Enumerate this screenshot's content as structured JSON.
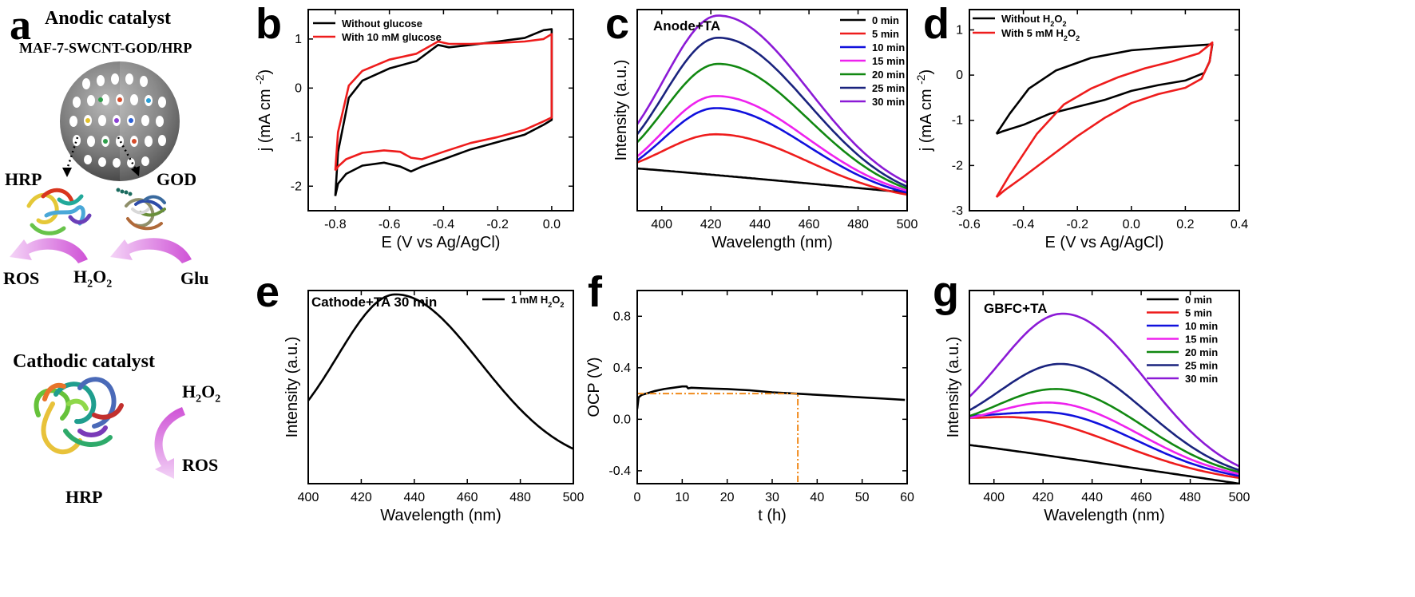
{
  "panel_a": {
    "letter": "a",
    "anodic_title": "Anodic catalyst",
    "subtitle": "MAF-7-SWCNT-GOD/HRP",
    "hrp_label": "HRP",
    "god_label": "GOD",
    "ros_label": "ROS",
    "h2o2_label": "H",
    "h2o2_sub": "2",
    "h2o2_o": "O",
    "glu_label": "Glu",
    "cathodic_title": "Cathodic catalyst",
    "cathode_h2o2": "H",
    "cathode_ros": "ROS",
    "cathode_hrp": "HRP"
  },
  "chart_data": [
    {
      "id": "b",
      "letter": "b",
      "type": "line",
      "xlabel": "E (V vs Ag/AgCl)",
      "ylabel": "j (mA cm-2)",
      "xlim": [
        -0.9,
        0.08
      ],
      "ylim": [
        -2.5,
        1.6
      ],
      "xticks": [
        -0.8,
        -0.6,
        -0.4,
        -0.2,
        0.0
      ],
      "xticklabels": [
        "-0.8",
        "-0.6",
        "-0.4",
        "-0.2",
        "0.0"
      ],
      "yticks": [
        -2,
        -1,
        0,
        1
      ],
      "yticklabels": [
        "-2",
        "-1",
        "0",
        "1"
      ],
      "legend_position": "top-left",
      "series": [
        {
          "name": "Without glucose",
          "color": "#000000",
          "x": [
            -0.8,
            -0.79,
            -0.75,
            -0.7,
            -0.6,
            -0.5,
            -0.42,
            -0.38,
            -0.3,
            -0.2,
            -0.1,
            -0.03,
            0.0,
            0.0,
            -0.03,
            -0.1,
            -0.2,
            -0.3,
            -0.4,
            -0.48,
            -0.52,
            -0.56,
            -0.62,
            -0.7,
            -0.76,
            -0.79,
            -0.8
          ],
          "y": [
            -2.2,
            -1.3,
            -0.2,
            0.15,
            0.4,
            0.55,
            0.88,
            0.83,
            0.88,
            0.95,
            1.02,
            1.18,
            1.2,
            -0.65,
            -0.75,
            -0.95,
            -1.1,
            -1.25,
            -1.45,
            -1.6,
            -1.7,
            -1.6,
            -1.52,
            -1.58,
            -1.75,
            -1.95,
            -2.2
          ]
        },
        {
          "name": "With 10 mM glucose",
          "color": "#ee1c1c",
          "x": [
            -0.8,
            -0.79,
            -0.75,
            -0.7,
            -0.6,
            -0.5,
            -0.42,
            -0.38,
            -0.3,
            -0.2,
            -0.1,
            -0.03,
            0.0,
            0.0,
            -0.03,
            -0.1,
            -0.2,
            -0.3,
            -0.4,
            -0.48,
            -0.52,
            -0.56,
            -0.62,
            -0.7,
            -0.76,
            -0.79,
            -0.8
          ],
          "y": [
            -1.68,
            -0.9,
            0.05,
            0.35,
            0.58,
            0.7,
            0.95,
            0.9,
            0.9,
            0.92,
            0.95,
            1.0,
            1.1,
            -0.6,
            -0.68,
            -0.85,
            -1.0,
            -1.12,
            -1.3,
            -1.45,
            -1.42,
            -1.3,
            -1.27,
            -1.32,
            -1.45,
            -1.6,
            -1.68
          ]
        }
      ]
    },
    {
      "id": "c",
      "letter": "c",
      "type": "line",
      "annotation": "Anode+TA",
      "xlabel": "Wavelength (nm)",
      "ylabel": "Intensity (a.u.)",
      "xlim": [
        390,
        500
      ],
      "ylim": [
        0,
        1
      ],
      "xticks": [
        400,
        420,
        440,
        460,
        480,
        500
      ],
      "xticklabels": [
        "400",
        "420",
        "440",
        "460",
        "480",
        "500"
      ],
      "yticks": [],
      "yticklabels": [],
      "legend_position": "top-right",
      "series": [
        {
          "name": "0 min",
          "color": "#000000",
          "peak_x": 422,
          "start": 0.21,
          "peak": 0.21,
          "end": 0.09,
          "curve": "decay"
        },
        {
          "name": "5 min",
          "color": "#ee1c1c",
          "peak_x": 422,
          "start": 0.24,
          "peak": 0.38,
          "end": 0.08
        },
        {
          "name": "10 min",
          "color": "#1010dd",
          "peak_x": 422,
          "start": 0.25,
          "peak": 0.51,
          "end": 0.09
        },
        {
          "name": "15 min",
          "color": "#ee22ee",
          "peak_x": 422,
          "start": 0.27,
          "peak": 0.57,
          "end": 0.1
        },
        {
          "name": "20 min",
          "color": "#118811",
          "peak_x": 423,
          "start": 0.34,
          "peak": 0.73,
          "end": 0.11
        },
        {
          "name": "25 min",
          "color": "#1a237e",
          "peak_x": 423,
          "start": 0.38,
          "peak": 0.86,
          "end": 0.12
        },
        {
          "name": "30 min",
          "color": "#8b1ad6",
          "peak_x": 423,
          "start": 0.43,
          "peak": 0.97,
          "end": 0.14
        }
      ]
    },
    {
      "id": "d",
      "letter": "d",
      "type": "line",
      "xlabel": "E (V vs Ag/AgCl)",
      "ylabel": "j (mA cm-2)",
      "xlim": [
        -0.6,
        0.4
      ],
      "ylim": [
        -3,
        1.45
      ],
      "xticks": [
        -0.6,
        -0.4,
        -0.2,
        0.0,
        0.2,
        0.4
      ],
      "xticklabels": [
        "-0.6",
        "-0.4",
        "-0.2",
        "0.0",
        "0.2",
        "0.4"
      ],
      "yticks": [
        -3,
        -2,
        -1,
        0,
        1
      ],
      "yticklabels": [
        "-3",
        "-2",
        "-1",
        "0",
        "1"
      ],
      "legend_position": "top-left",
      "series": [
        {
          "name": "Without H2O2",
          "color": "#000000",
          "x": [
            -0.5,
            -0.45,
            -0.38,
            -0.28,
            -0.15,
            0.0,
            0.15,
            0.25,
            0.3,
            0.29,
            0.27,
            0.2,
            0.1,
            0.0,
            -0.1,
            -0.2,
            -0.3,
            -0.4,
            -0.48,
            -0.5
          ],
          "y": [
            -1.3,
            -0.85,
            -0.3,
            0.1,
            0.38,
            0.55,
            0.62,
            0.66,
            0.68,
            0.3,
            0.05,
            -0.12,
            -0.22,
            -0.35,
            -0.55,
            -0.7,
            -0.85,
            -1.1,
            -1.25,
            -1.3
          ]
        },
        {
          "name": "With 5 mM H2O2",
          "color": "#ee1c1c",
          "x": [
            -0.5,
            -0.45,
            -0.35,
            -0.25,
            -0.15,
            -0.05,
            0.05,
            0.15,
            0.25,
            0.3,
            0.29,
            0.26,
            0.2,
            0.1,
            0.0,
            -0.1,
            -0.2,
            -0.3,
            -0.4,
            -0.47,
            -0.5
          ],
          "y": [
            -2.7,
            -2.2,
            -1.3,
            -0.65,
            -0.3,
            -0.05,
            0.15,
            0.3,
            0.48,
            0.72,
            0.3,
            -0.08,
            -0.28,
            -0.42,
            -0.62,
            -0.95,
            -1.35,
            -1.8,
            -2.25,
            -2.55,
            -2.7
          ]
        }
      ]
    },
    {
      "id": "e",
      "letter": "e",
      "type": "line",
      "annotation": "Cathode+TA 30 min",
      "xlabel": "Wavelength (nm)",
      "ylabel": "Intensity (a.u.)",
      "xlim": [
        400,
        500
      ],
      "ylim": [
        0,
        1
      ],
      "xticks": [
        400,
        420,
        440,
        460,
        480,
        500
      ],
      "xticklabels": [
        "400",
        "420",
        "440",
        "460",
        "480",
        "500"
      ],
      "yticks": [],
      "yticklabels": [],
      "legend_position": "top-right",
      "series": [
        {
          "name": "1 mM H2O2",
          "color": "#000000",
          "peak_x": 433,
          "start": 0.43,
          "peak": 0.98,
          "end": 0.18
        }
      ]
    },
    {
      "id": "f",
      "letter": "f",
      "type": "line",
      "xlabel": "t (h)",
      "ylabel": "OCP (V)",
      "xlim": [
        0,
        60
      ],
      "ylim": [
        -0.5,
        1.0
      ],
      "xticks": [
        0,
        10,
        20,
        30,
        40,
        50,
        60
      ],
      "xticklabels": [
        "0",
        "10",
        "20",
        "30",
        "40",
        "50",
        "60"
      ],
      "yticks": [
        -0.4,
        0.0,
        0.4,
        0.8
      ],
      "yticklabels": [
        "-0.4",
        "0.0",
        "0.4",
        "0.8"
      ],
      "series": [
        {
          "name": "",
          "color": "#000000",
          "x": [
            0,
            0.3,
            1,
            2,
            4,
            6,
            8,
            10,
            11,
            11.3,
            12,
            15,
            20,
            25,
            30,
            35,
            40,
            45,
            50,
            55,
            59.5
          ],
          "y": [
            0.08,
            0.17,
            0.19,
            0.2,
            0.22,
            0.235,
            0.245,
            0.255,
            0.255,
            0.24,
            0.245,
            0.24,
            0.235,
            0.225,
            0.21,
            0.2,
            0.19,
            0.18,
            0.17,
            0.16,
            0.15
          ]
        }
      ],
      "guide": {
        "y_level": 0.2,
        "x_level": 35.7,
        "color": "#f08a1c"
      }
    },
    {
      "id": "g",
      "letter": "g",
      "type": "line",
      "annotation": "GBFC+TA",
      "xlabel": "Wavelength (nm)",
      "ylabel": "Intensity (a.u.)",
      "xlim": [
        390,
        500
      ],
      "ylim": [
        0,
        1
      ],
      "xticks": [
        400,
        420,
        440,
        460,
        480,
        500
      ],
      "xticklabels": [
        "400",
        "420",
        "440",
        "460",
        "480",
        "500"
      ],
      "yticks": [],
      "yticklabels": [],
      "legend_position": "top-right",
      "series": [
        {
          "name": "0 min",
          "color": "#000000",
          "peak_x": 390,
          "start": 0.2,
          "peak": 0.2,
          "end": 0.0,
          "curve": "decay"
        },
        {
          "name": "5 min",
          "color": "#ee1c1c",
          "peak_x": 405,
          "start": 0.34,
          "peak": 0.345,
          "end": 0.03
        },
        {
          "name": "10 min",
          "color": "#1010dd",
          "peak_x": 420,
          "start": 0.35,
          "peak": 0.37,
          "end": 0.04
        },
        {
          "name": "15 min",
          "color": "#ee22ee",
          "peak_x": 422,
          "start": 0.34,
          "peak": 0.42,
          "end": 0.05
        },
        {
          "name": "20 min",
          "color": "#118811",
          "peak_x": 425,
          "start": 0.35,
          "peak": 0.49,
          "end": 0.06
        },
        {
          "name": "25 min",
          "color": "#1a237e",
          "peak_x": 427,
          "start": 0.38,
          "peak": 0.62,
          "end": 0.07
        },
        {
          "name": "30 min",
          "color": "#8b1ad6",
          "peak_x": 428,
          "start": 0.45,
          "peak": 0.88,
          "end": 0.09
        }
      ]
    }
  ]
}
